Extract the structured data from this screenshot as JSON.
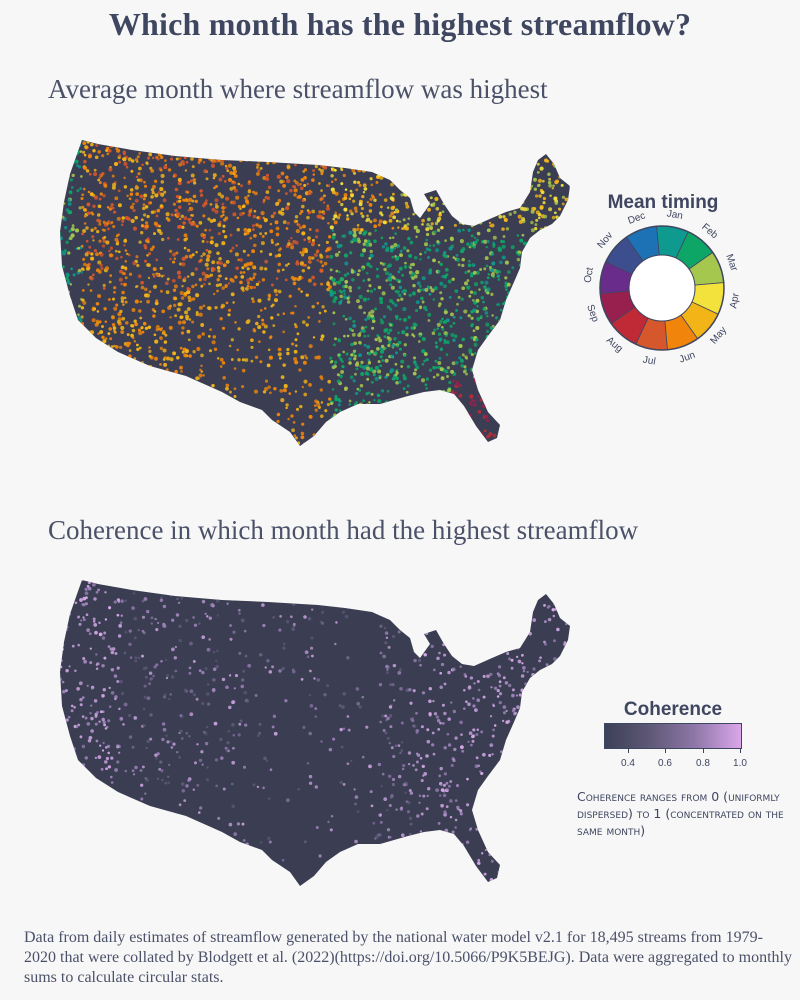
{
  "title": "Which month has the highest streamflow?",
  "maps": [
    {
      "subtitle": "Average month where streamflow was highest"
    },
    {
      "subtitle": "Coherence in which month had the highest streamflow"
    }
  ],
  "mean_timing_legend": {
    "title": "Mean timing",
    "months": [
      {
        "label": "Jan",
        "color": "#0e9a8f"
      },
      {
        "label": "Feb",
        "color": "#0ea667"
      },
      {
        "label": "Mar",
        "color": "#a6c74e"
      },
      {
        "label": "Apr",
        "color": "#f4e23c"
      },
      {
        "label": "May",
        "color": "#f2b417"
      },
      {
        "label": "Jun",
        "color": "#f1850b"
      },
      {
        "label": "Jul",
        "color": "#d6572b"
      },
      {
        "label": "Aug",
        "color": "#c02a36"
      },
      {
        "label": "Sep",
        "color": "#97204e"
      },
      {
        "label": "Oct",
        "color": "#6a2c8a"
      },
      {
        "label": "Nov",
        "color": "#3c4e8e"
      },
      {
        "label": "Dec",
        "color": "#1d72b5"
      }
    ]
  },
  "coherence_legend": {
    "title": "Coherence",
    "ticks": [
      "0.4",
      "0.6",
      "0.8",
      "1.0"
    ],
    "color_low": "#3c4059",
    "color_high": "#dba6ea",
    "note": "Coherence ranges from 0 (uniformly dispersed) to 1 (concentrated on the same month)"
  },
  "colors": {
    "background": "#f7f7f7",
    "map_base": "#3b3e52",
    "text": "#3f4660"
  },
  "source": "Data from daily estimates of streamflow generated by the national water model v2.1 for 18,495 streams from 1979-2020 that were collated by Blodgett et al. (2022)(https://doi.org/10.5066/P9K5BEJG). Data were aggregated to monthly sums to calculate circular stats."
}
